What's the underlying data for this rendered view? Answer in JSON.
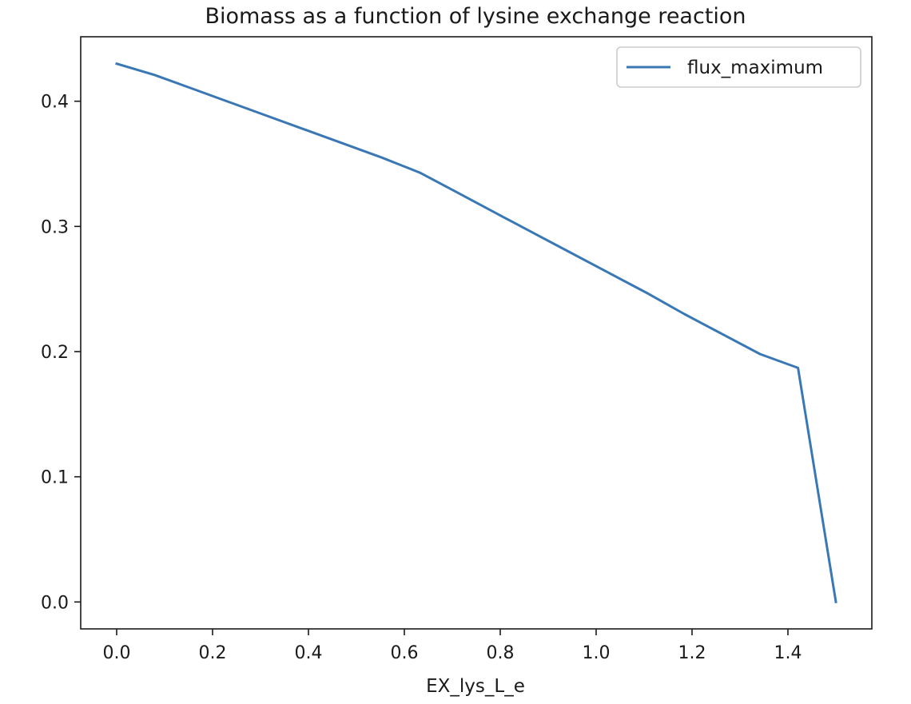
{
  "chart_data": {
    "type": "line",
    "title": "Biomass as a function of lysine exchange reaction",
    "xlabel": "EX_lys_L_e",
    "ylabel": "",
    "xlim": [
      -0.075,
      1.575
    ],
    "ylim": [
      -0.0215,
      0.4515
    ],
    "xticks": [
      0.0,
      0.2,
      0.4,
      0.6,
      0.8,
      1.0,
      1.2,
      1.4
    ],
    "xtick_labels": [
      "0.0",
      "0.2",
      "0.4",
      "0.6",
      "0.8",
      "1.0",
      "1.2",
      "1.4"
    ],
    "yticks": [
      0.0,
      0.1,
      0.2,
      0.3,
      0.4
    ],
    "ytick_labels": [
      "0.0",
      "0.1",
      "0.2",
      "0.3",
      "0.4"
    ],
    "grid": false,
    "legend_position": "upper right",
    "series": [
      {
        "name": "flux_maximum",
        "color": "#3a78b5",
        "x": [
          0.0,
          0.079,
          0.158,
          0.237,
          0.316,
          0.395,
          0.474,
          0.553,
          0.632,
          0.711,
          0.789,
          0.868,
          0.947,
          1.026,
          1.105,
          1.184,
          1.263,
          1.342,
          1.421,
          1.5
        ],
        "y": [
          0.43,
          0.421,
          0.41,
          0.399,
          0.388,
          0.377,
          0.366,
          0.355,
          0.343,
          0.327,
          0.311,
          0.295,
          0.279,
          0.263,
          0.247,
          0.23,
          0.214,
          0.198,
          0.187,
          0.0
        ]
      }
    ]
  }
}
